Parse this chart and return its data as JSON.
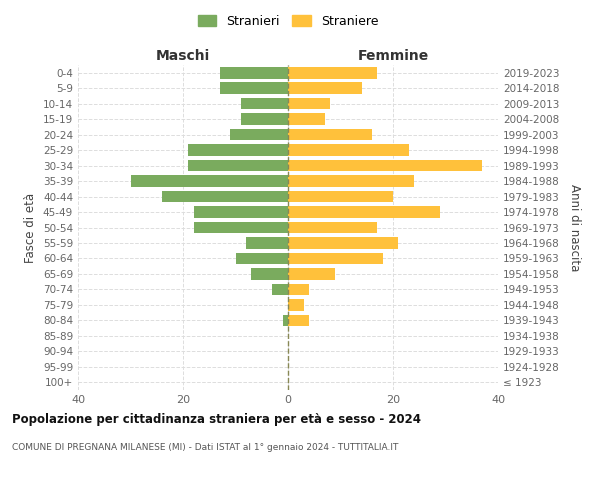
{
  "age_groups": [
    "100+",
    "95-99",
    "90-94",
    "85-89",
    "80-84",
    "75-79",
    "70-74",
    "65-69",
    "60-64",
    "55-59",
    "50-54",
    "45-49",
    "40-44",
    "35-39",
    "30-34",
    "25-29",
    "20-24",
    "15-19",
    "10-14",
    "5-9",
    "0-4"
  ],
  "birth_years": [
    "≤ 1923",
    "1924-1928",
    "1929-1933",
    "1934-1938",
    "1939-1943",
    "1944-1948",
    "1949-1953",
    "1954-1958",
    "1959-1963",
    "1964-1968",
    "1969-1973",
    "1974-1978",
    "1979-1983",
    "1984-1988",
    "1989-1993",
    "1994-1998",
    "1999-2003",
    "2004-2008",
    "2009-2013",
    "2014-2018",
    "2019-2023"
  ],
  "males": [
    0,
    0,
    0,
    0,
    1,
    0,
    3,
    7,
    10,
    8,
    18,
    18,
    24,
    30,
    19,
    19,
    11,
    9,
    9,
    13,
    13
  ],
  "females": [
    0,
    0,
    0,
    0,
    4,
    3,
    4,
    9,
    18,
    21,
    17,
    29,
    20,
    24,
    37,
    23,
    16,
    7,
    8,
    14,
    17
  ],
  "male_color": "#7aab5e",
  "female_color": "#ffc13b",
  "title1": "Popolazione per cittadinanza straniera per età e sesso - 2024",
  "title2": "COMUNE DI PREGNANA MILANESE (MI) - Dati ISTAT al 1° gennaio 2024 - TUTTITALIA.IT",
  "xlabel_left": "Maschi",
  "xlabel_right": "Femmine",
  "ylabel_left": "Fasce di età",
  "ylabel_right": "Anni di nascita",
  "legend_male": "Stranieri",
  "legend_female": "Straniere",
  "xlim": 40,
  "background_color": "#ffffff",
  "grid_color": "#dddddd",
  "center_line_color": "#888855"
}
